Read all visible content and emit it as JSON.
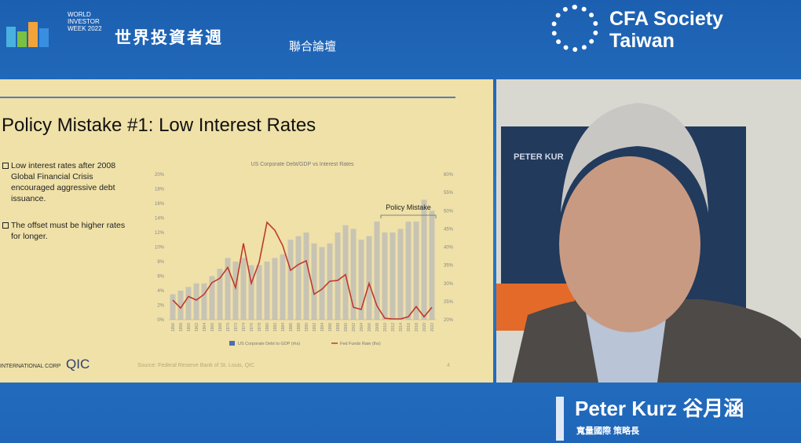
{
  "header": {
    "event_lines": [
      "WORLD",
      "INVESTOR",
      "WEEK 2022"
    ],
    "title": "世界投資者週",
    "subtitle": "聯合論壇",
    "org_lines": [
      "CFA Society",
      "Taiwan"
    ]
  },
  "slide": {
    "title": "Policy Mistake #1: Low Interest Rates",
    "bullets": [
      "Low interest rates after 2008 Global Financial Crisis encouraged aggressive debt issuance.",
      "The offset must be higher rates for longer."
    ],
    "logo": "INTERNATIONAL CORP",
    "logo_mark": "QIC",
    "source": "Source: Federal Reserve Bank of St. Louis, QIC",
    "page": "4"
  },
  "chart_data": {
    "type": "bar",
    "title": "US Corporate Debt/GDP vs Interest Rates",
    "annotation": "Policy Mistake",
    "categories": [
      "1956",
      "1958",
      "1960",
      "1962",
      "1964",
      "1966",
      "1968",
      "1970",
      "1972",
      "1974",
      "1976",
      "1978",
      "1980",
      "1982",
      "1984",
      "1986",
      "1988",
      "1990",
      "1992",
      "1994",
      "1996",
      "1998",
      "2000",
      "2002",
      "2004",
      "2006",
      "2008",
      "2010",
      "2012",
      "2014",
      "2016",
      "2018",
      "2020",
      "2022"
    ],
    "series": [
      {
        "name": "US Corporate Debt to GDP (rhs)",
        "type": "bar",
        "axis": "y2",
        "color": "#c8c4b4",
        "legend_color": "#4a6fb5",
        "values": [
          27,
          28,
          29,
          30,
          30,
          32,
          34,
          37,
          36,
          37,
          35,
          35,
          36,
          37,
          38,
          42,
          43,
          44,
          41,
          40,
          41,
          44,
          46,
          45,
          42,
          43,
          47,
          44,
          44,
          45,
          47,
          47,
          53,
          50
        ]
      },
      {
        "name": "Fed Funds Rate (lhs)",
        "type": "line",
        "color": "#c0392b",
        "values": [
          2.7,
          1.6,
          3.2,
          2.7,
          3.5,
          5.1,
          5.7,
          7.2,
          4.4,
          10.5,
          5.0,
          7.9,
          13.4,
          12.3,
          10.2,
          6.8,
          7.6,
          8.1,
          3.5,
          4.2,
          5.3,
          5.4,
          6.2,
          1.7,
          1.4,
          5.0,
          1.9,
          0.2,
          0.1,
          0.1,
          0.4,
          1.8,
          0.4,
          1.7
        ]
      }
    ],
    "ylim": [
      0,
      20
    ],
    "yticks": [
      {
        "value": 0,
        "label": "0%"
      },
      {
        "value": 2,
        "label": "2%"
      },
      {
        "value": 4,
        "label": "4%"
      },
      {
        "value": 6,
        "label": "6%"
      },
      {
        "value": 8,
        "label": "8%"
      },
      {
        "value": 10,
        "label": "10%"
      },
      {
        "value": 12,
        "label": "12%"
      },
      {
        "value": 14,
        "label": "14%"
      },
      {
        "value": 16,
        "label": "16%"
      },
      {
        "value": 18,
        "label": "18%"
      },
      {
        "value": 20,
        "label": "20%"
      }
    ],
    "y2lim": [
      20,
      60
    ],
    "y2ticks": [
      {
        "value": 20,
        "label": "20%"
      },
      {
        "value": 25,
        "label": "25%"
      },
      {
        "value": 30,
        "label": "30%"
      },
      {
        "value": 35,
        "label": "35%"
      },
      {
        "value": 40,
        "label": "40%"
      },
      {
        "value": 45,
        "label": "45%"
      },
      {
        "value": 50,
        "label": "50%"
      },
      {
        "value": 55,
        "label": "55%"
      },
      {
        "value": 60,
        "label": "60%"
      }
    ]
  },
  "video": {
    "banner_text": "PETER KUR"
  },
  "speaker": {
    "name": "Peter Kurz 谷月涵",
    "role": "寬量國際 策略長"
  }
}
